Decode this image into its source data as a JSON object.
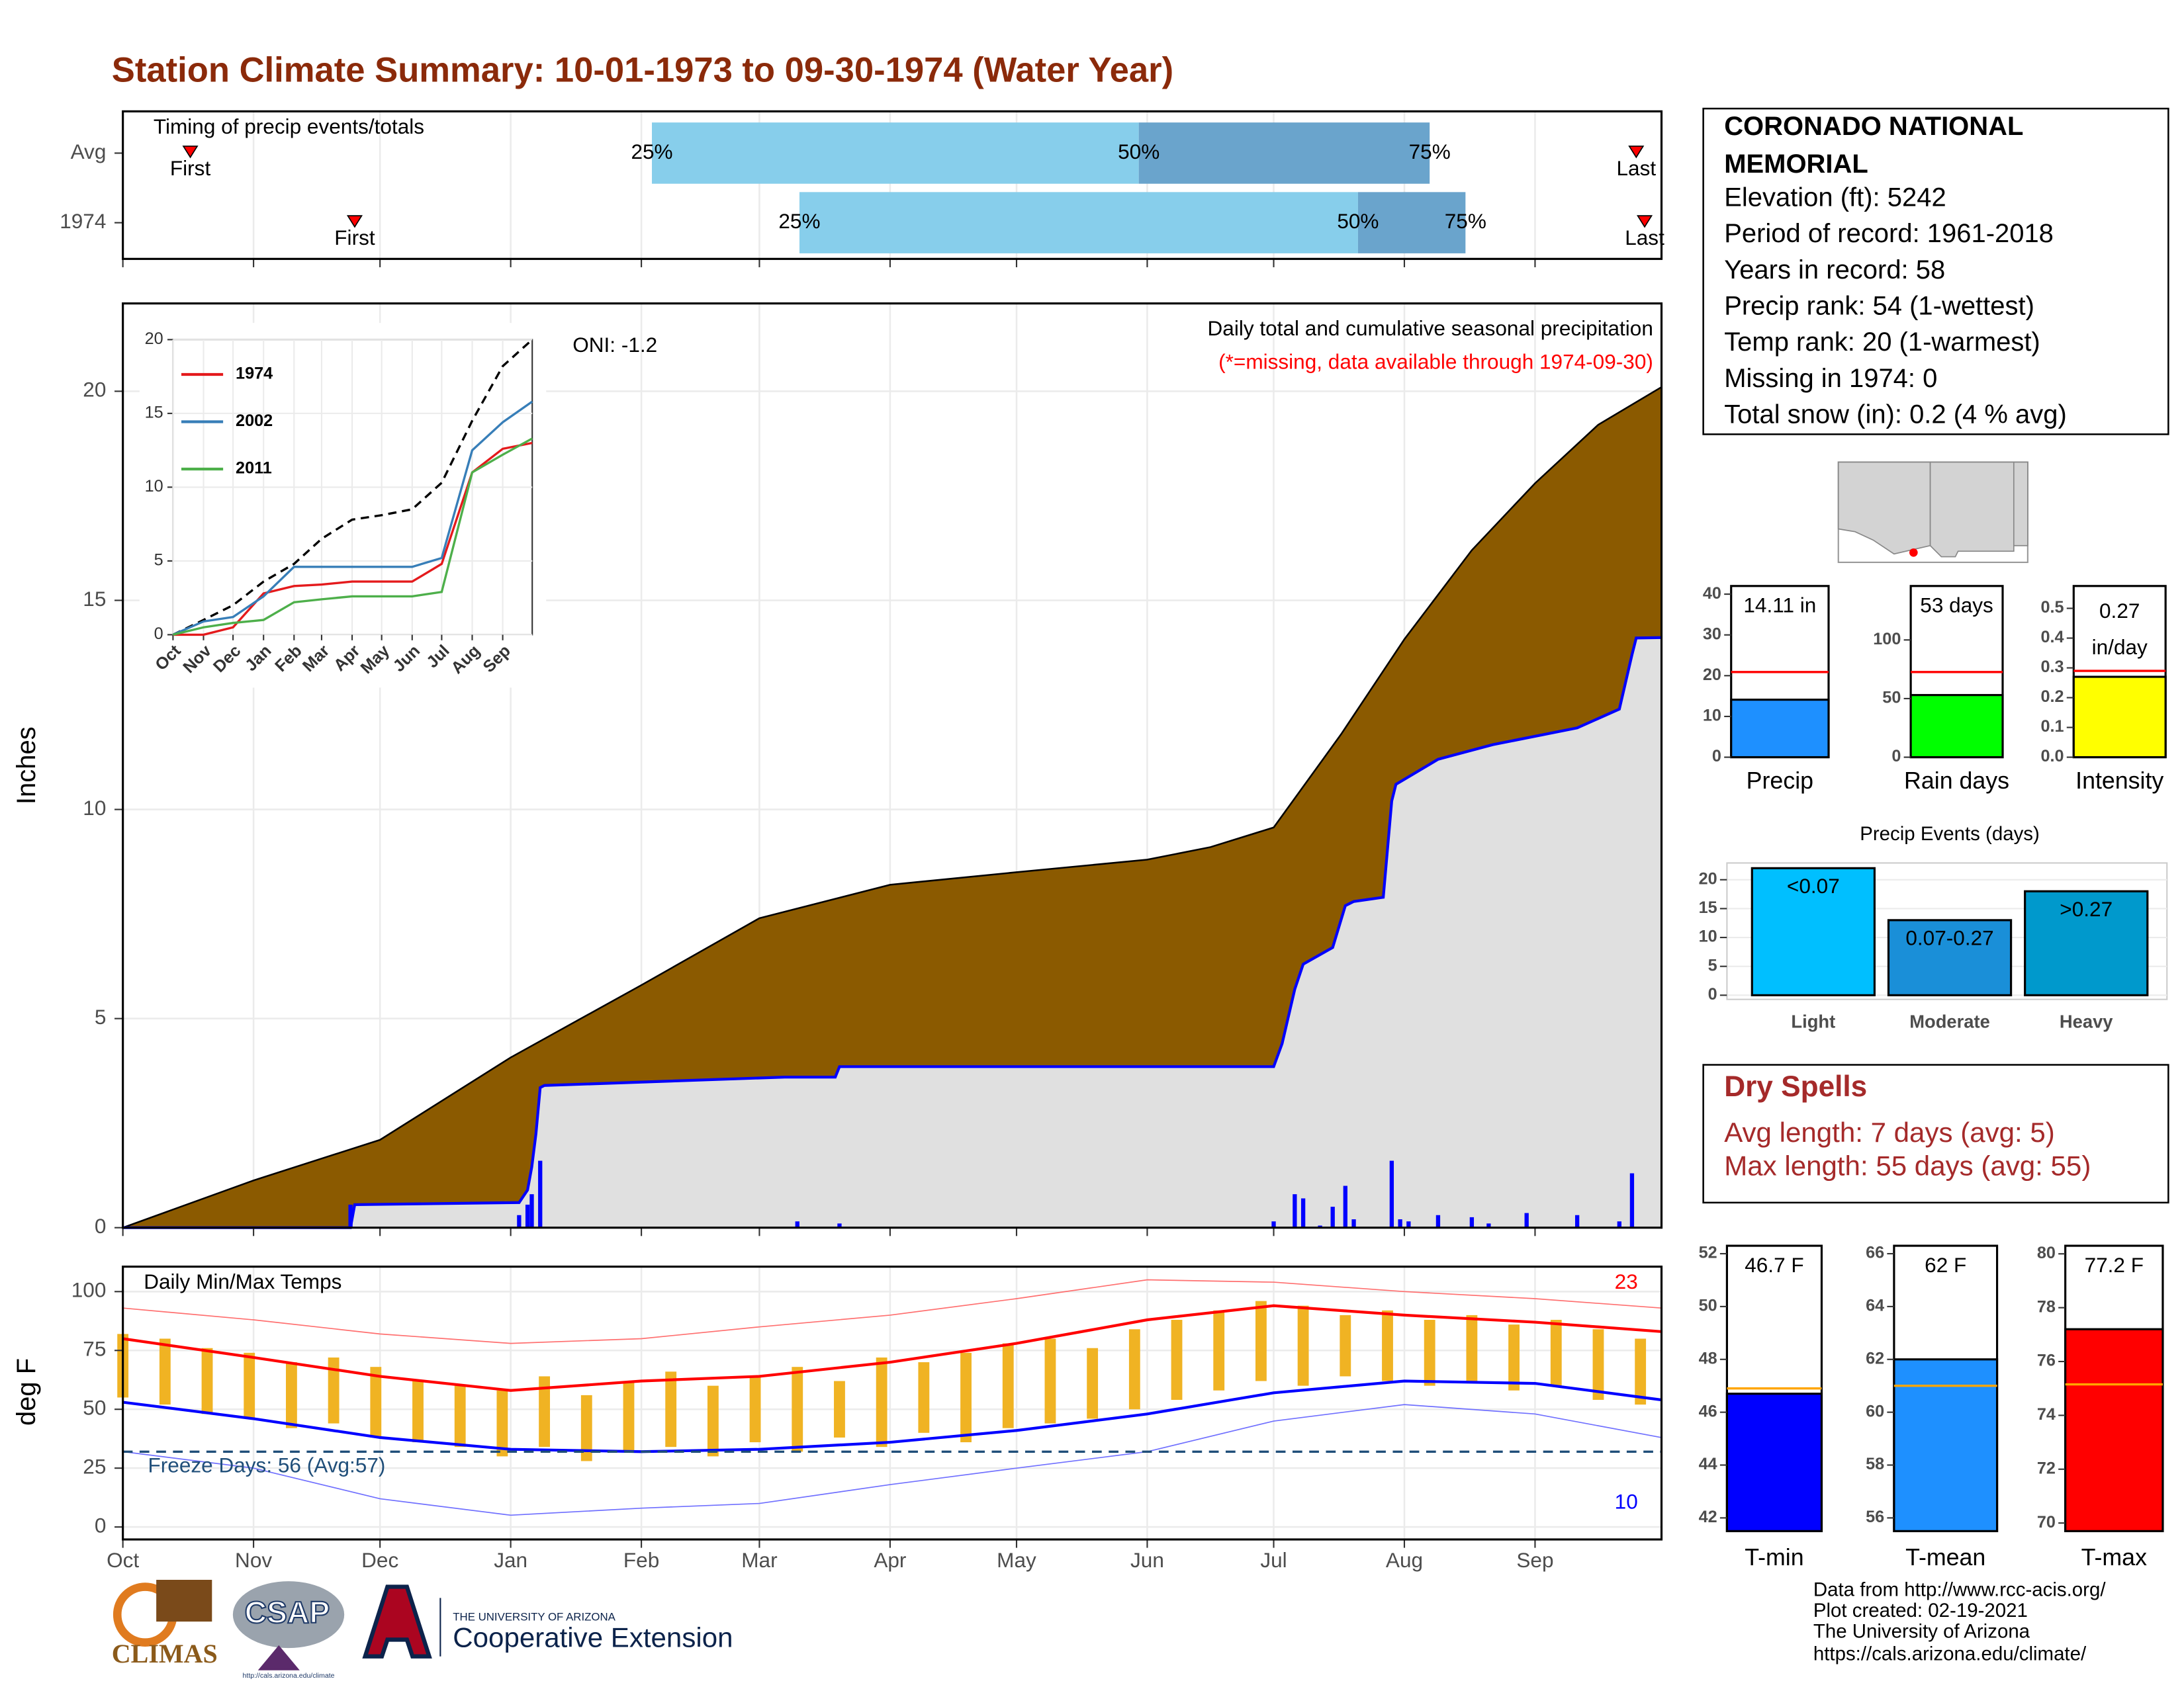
{
  "title": "Station Climate Summary: 10-01-1973 to 09-30-1974 (Water Year)",
  "chart_data": [
    {
      "type": "timing",
      "title": "Timing of precip events/totals",
      "categories": [
        "Avg",
        "1974"
      ],
      "xlim": [
        0,
        365
      ],
      "first": [
        16,
        55
      ],
      "last": [
        359,
        361
      ],
      "first_label": "First",
      "last_label": "Last",
      "quartiles": [
        [
          125.5,
          241,
          310
        ],
        [
          160.5,
          293,
          318.5
        ]
      ],
      "quartile_labels": [
        "25%",
        "50%",
        "75%"
      ],
      "colors": [
        "#87ceeb",
        "#6aa4cc"
      ],
      "marker_color": "#ff0000"
    },
    {
      "type": "area",
      "ylabel": "Inches",
      "oni": "ONI: -1.2",
      "subtitle": "Daily total and cumulative seasonal precipitation",
      "missing_note": "(*=missing, data available through 1974-09-30)",
      "xlim": [
        0,
        365
      ],
      "ylim": [
        0,
        22.1
      ],
      "yticks": [
        0,
        5,
        10,
        15,
        20
      ],
      "grid": true,
      "average": {
        "x": [
          0,
          31,
          61,
          92,
          123,
          151,
          182,
          212,
          243,
          258,
          273,
          289,
          304,
          320,
          335,
          350,
          365
        ],
        "values": [
          0,
          1.13,
          2.1,
          4.07,
          5.8,
          7.4,
          8.2,
          8.5,
          8.8,
          9.1,
          9.57,
          11.8,
          14.07,
          16.2,
          17.8,
          19.2,
          20.1
        ],
        "color": "#8b5a00"
      },
      "season": {
        "x": [
          0,
          54,
          55,
          94,
          96,
          97,
          98,
          99,
          100,
          157,
          169,
          170,
          273,
          275,
          278,
          280,
          287,
          290,
          292,
          299,
          301,
          302,
          312,
          325,
          345,
          355,
          358,
          359,
          365
        ],
        "values": [
          0,
          0,
          0.55,
          0.6,
          0.9,
          1.45,
          2.25,
          3.35,
          3.4,
          3.6,
          3.6,
          3.85,
          3.85,
          4.4,
          5.7,
          6.3,
          6.7,
          7.7,
          7.8,
          7.9,
          10.2,
          10.6,
          11.2,
          11.55,
          11.95,
          12.4,
          13.7,
          14.1,
          14.11
        ],
        "color": "#0000ff",
        "fill": "#e0e0e0"
      },
      "daily": {
        "x": [
          54,
          94,
          96,
          97,
          99,
          160,
          170,
          273,
          278,
          280,
          284,
          287,
          290,
          292,
          301,
          303,
          305,
          312,
          320,
          324,
          333,
          345,
          355,
          358
        ],
        "values": [
          0.55,
          0.3,
          0.55,
          0.8,
          1.6,
          0.15,
          0.1,
          0.15,
          0.8,
          0.7,
          0.05,
          0.5,
          1.0,
          0.2,
          1.6,
          0.2,
          0.15,
          0.3,
          0.25,
          0.1,
          0.35,
          0.3,
          0.15,
          1.3
        ],
        "color": "#0000ff"
      }
    },
    {
      "type": "line",
      "xlim": [
        0,
        365
      ],
      "ylim": [
        0,
        20
      ],
      "yticks": [
        0,
        5,
        10,
        15,
        20
      ],
      "xticks": [
        {
          "value": 0,
          "label": "Oct"
        },
        {
          "value": 31,
          "label": "Nov"
        },
        {
          "value": 61,
          "label": "Dec"
        },
        {
          "value": 92,
          "label": "Jan"
        },
        {
          "value": 123,
          "label": "Feb"
        },
        {
          "value": 151,
          "label": "Mar"
        },
        {
          "value": 182,
          "label": "Apr"
        },
        {
          "value": 212,
          "label": "May"
        },
        {
          "value": 243,
          "label": "Jun"
        },
        {
          "value": 273,
          "label": "Jul"
        },
        {
          "value": 304,
          "label": "Aug"
        },
        {
          "value": 335,
          "label": "Sep"
        }
      ],
      "x": [
        0,
        31,
        61,
        92,
        123,
        151,
        182,
        212,
        243,
        273,
        304,
        335,
        365
      ],
      "average": {
        "values": [
          0,
          1,
          2,
          3.6,
          4.8,
          6.5,
          7.8,
          8.1,
          8.5,
          10.3,
          14.5,
          18.2,
          20
        ],
        "color": "#000000"
      },
      "series": [
        {
          "name": "1974",
          "color": "#e41a1c",
          "values": [
            0,
            0,
            0.5,
            2.8,
            3.3,
            3.4,
            3.6,
            3.6,
            3.6,
            4.8,
            11.0,
            12.6,
            13
          ]
        },
        {
          "name": "2002",
          "color": "#377eb8",
          "values": [
            0,
            0.9,
            1.2,
            2.6,
            4.6,
            4.6,
            4.6,
            4.6,
            4.6,
            5.2,
            12.5,
            14.4,
            15.8
          ]
        },
        {
          "name": "2011",
          "color": "#4daf4a",
          "values": [
            0,
            0.5,
            0.8,
            1.0,
            2.2,
            2.4,
            2.6,
            2.6,
            2.6,
            2.9,
            11.0,
            12.2,
            13.3
          ]
        }
      ]
    },
    {
      "type": "range",
      "title": "Daily Min/Max Temps",
      "ylabel": "deg F",
      "xlim": [
        0,
        365
      ],
      "ylim": [
        -5.3,
        110.6
      ],
      "yticks": [
        0,
        25,
        50,
        75,
        100
      ],
      "grid": true,
      "xticks": [
        {
          "value": 0,
          "label": "Oct"
        },
        {
          "value": 31,
          "label": "Nov"
        },
        {
          "value": 61,
          "label": "Dec"
        },
        {
          "value": 92,
          "label": "Jan"
        },
        {
          "value": 123,
          "label": "Feb"
        },
        {
          "value": 151,
          "label": "Mar"
        },
        {
          "value": 182,
          "label": "Apr"
        },
        {
          "value": 212,
          "label": "May"
        },
        {
          "value": 243,
          "label": "Jun"
        },
        {
          "value": 273,
          "label": "Jul"
        },
        {
          "value": 304,
          "label": "Aug"
        },
        {
          "value": 335,
          "label": "Sep"
        }
      ],
      "daily": {
        "x": [
          0,
          10,
          20,
          30,
          40,
          50,
          60,
          70,
          80,
          90,
          100,
          110,
          120,
          130,
          140,
          150,
          160,
          170,
          180,
          190,
          200,
          210,
          220,
          230,
          240,
          250,
          260,
          270,
          280,
          290,
          300,
          310,
          320,
          330,
          340,
          350,
          360
        ],
        "min": [
          55,
          52,
          48,
          46,
          42,
          44,
          38,
          36,
          34,
          30,
          34,
          28,
          32,
          34,
          30,
          36,
          32,
          38,
          34,
          40,
          36,
          42,
          44,
          46,
          50,
          54,
          58,
          62,
          60,
          64,
          62,
          60,
          62,
          58,
          60,
          54,
          52
        ],
        "max": [
          82,
          80,
          76,
          74,
          70,
          72,
          68,
          62,
          60,
          58,
          64,
          56,
          62,
          66,
          60,
          64,
          68,
          62,
          72,
          70,
          74,
          78,
          80,
          76,
          84,
          88,
          92,
          96,
          94,
          90,
          92,
          88,
          90,
          86,
          88,
          84,
          80
        ],
        "color": "#f0b323"
      },
      "x": [
        0,
        31,
        61,
        92,
        123,
        151,
        182,
        212,
        243,
        273,
        304,
        335,
        365
      ],
      "avg_max": {
        "values": [
          80,
          72,
          64,
          58,
          62,
          64,
          70,
          78,
          88,
          94,
          90,
          87,
          83
        ],
        "color": "#ff0000"
      },
      "avg_min": {
        "values": [
          53,
          46,
          38,
          33,
          32,
          33,
          36,
          41,
          48,
          57,
          62,
          61,
          54
        ],
        "color": "#0000ff"
      },
      "record_max": {
        "values": [
          93,
          88,
          82,
          78,
          80,
          85,
          90,
          97,
          105,
          104,
          100,
          97,
          93
        ],
        "color": "#ff7070"
      },
      "record_min": {
        "values": [
          32,
          25,
          12,
          5,
          8,
          10,
          18,
          25,
          32,
          45,
          52,
          48,
          38
        ],
        "color": "#7070ff"
      },
      "freeze": {
        "value": 32,
        "label": "Freeze Days: 56 (Avg:57)",
        "color": "#1f4e79"
      },
      "count_high": 23,
      "count_low": 10
    },
    {
      "type": "bar",
      "categories": [
        "Precip"
      ],
      "values": [
        14.11
      ],
      "value_labels": [
        "14.11 in"
      ],
      "average": 20.9,
      "color": "#1e90ff",
      "ylim": [
        0,
        42
      ],
      "yticks": [
        0,
        10,
        20,
        30,
        40
      ]
    },
    {
      "type": "bar",
      "categories": [
        "Rain days"
      ],
      "values": [
        53
      ],
      "value_labels": [
        "53 days"
      ],
      "average": 72.6,
      "color": "#00ff00",
      "ylim": [
        0,
        146
      ],
      "yticks": [
        0,
        50,
        100
      ]
    },
    {
      "type": "bar",
      "categories": [
        "Intensity"
      ],
      "values": [
        0.27
      ],
      "value_labels": [
        "0.27"
      ],
      "unit": "in/day",
      "average": 0.29,
      "color": "#ffff00",
      "ylim": [
        0,
        0.575
      ],
      "yticks": [
        {
          "value": 0,
          "label": "0.0"
        },
        0.1,
        0.2,
        0.3,
        0.4,
        0.5
      ]
    },
    {
      "type": "events",
      "title": "Precip Events (days)",
      "categories": [
        "Light",
        "Moderate",
        "Heavy"
      ],
      "values": [
        22,
        13,
        18
      ],
      "bin_labels": [
        "<0.07",
        "0.07-0.27",
        ">0.27"
      ],
      "colors": [
        "#00bfff",
        "#1a8fd8",
        "#0099cc"
      ],
      "ylim": [
        0,
        22.9
      ],
      "yticks": [
        0,
        5,
        10,
        15,
        20
      ]
    },
    {
      "type": "bar",
      "categories": [
        "T-min"
      ],
      "values": [
        46.7
      ],
      "value_labels": [
        "46.7 F"
      ],
      "average": 46.9,
      "color": "#0000ff",
      "ylim": [
        41.5,
        52.3
      ],
      "yticks": [
        42,
        44,
        46,
        48,
        50,
        52
      ]
    },
    {
      "type": "bar",
      "categories": [
        "T-mean"
      ],
      "values": [
        62
      ],
      "value_labels": [
        "62 F"
      ],
      "average": 61.0,
      "color": "#1e90ff",
      "ylim": [
        55.5,
        66.3
      ],
      "yticks": [
        56,
        58,
        60,
        62,
        64,
        66
      ]
    },
    {
      "type": "bar",
      "categories": [
        "T-max"
      ],
      "values": [
        77.2
      ],
      "value_labels": [
        "77.2 F"
      ],
      "average": 75.15,
      "color": "#ff0000",
      "ylim": [
        69.7,
        80.3
      ],
      "yticks": [
        70,
        72,
        74,
        76,
        78,
        80
      ]
    }
  ],
  "station": {
    "lines": [
      "CORONADO NATIONAL",
      "MEMORIAL",
      "Elevation (ft): 5242",
      "Period of record: 1961-2018",
      "Years in record: 58",
      "Precip rank: 54 (1-wettest)",
      "Temp rank: 20 (1-warmest)",
      "Missing in 1974: 0",
      "Total snow (in): 0.2 (4 % avg)"
    ]
  },
  "dry_spells": {
    "title": "Dry Spells",
    "lines": [
      "Avg length: 7 days (avg: 5)",
      "Max length: 55 days (avg: 55)"
    ]
  },
  "footer": {
    "lines": [
      "Data from http://www.rcc-acis.org/",
      "Plot created: 02-19-2021",
      "The University of Arizona",
      "https://cals.arizona.edu/climate/"
    ]
  },
  "logos": {
    "climas": "CLIMAS",
    "csap": "CSAP",
    "csap_url": "http://cals.arizona.edu/climate",
    "ua": "THE UNIVERSITY OF ARIZONA",
    "extension": "Cooperative Extension"
  }
}
